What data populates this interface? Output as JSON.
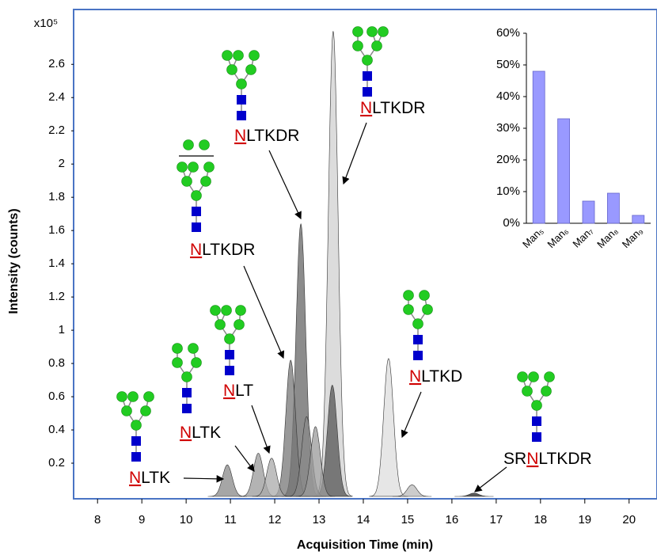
{
  "chart_data": [
    {
      "type": "chromatogram",
      "xlabel": "Acquisition Time (min)",
      "ylabel": "Intensity (counts)",
      "y_multiplier": "x10⁵",
      "x": [
        10.93,
        11.63,
        11.93,
        12.36,
        12.59,
        12.72,
        12.92,
        13.3,
        13.32,
        14.57,
        15.1,
        16.5
      ],
      "values": [
        0.19,
        0.26,
        0.23,
        0.82,
        1.64,
        0.48,
        0.42,
        0.67,
        2.8,
        0.83,
        0.07,
        0.02
      ],
      "colors": [
        "#888888",
        "#999999",
        "#aaaaaa",
        "#777777",
        "#666666",
        "#8a8a8a",
        "#9a9a9a",
        "#555555",
        "#d0d0d0",
        "#dddddd",
        "#bbbbbb",
        "#222222"
      ],
      "xlim": [
        7.46,
        20.63
      ],
      "xticks": [
        8,
        9,
        10,
        11,
        12,
        13,
        14,
        15,
        16,
        17,
        18,
        19,
        20
      ],
      "ylim": [
        0,
        2.93
      ],
      "yticks": [
        0.2,
        0.4,
        0.6,
        0.8,
        1,
        1.2,
        1.4,
        1.6,
        1.8,
        2,
        2.2,
        2.4,
        2.6
      ],
      "annotations": [
        {
          "site": "N",
          "text": "LTK"
        },
        {
          "site": "N",
          "text": "LTK"
        },
        {
          "site": "N",
          "text": "LT"
        },
        {
          "site": "N",
          "text": "LTKDR"
        },
        {
          "site": "N",
          "text": "LTKDR"
        },
        {
          "site": "N",
          "text": "LTKDR"
        },
        {
          "site": "N",
          "text": "LTKD"
        },
        {
          "prefix": "SR",
          "site": "N",
          "text": "LTKDR"
        }
      ]
    },
    {
      "type": "bar",
      "categories": [
        "Man₅",
        "Man₆",
        "Man₇",
        "Man₈",
        "Man₉"
      ],
      "values": [
        48,
        33,
        7,
        9.5,
        2.5
      ],
      "color": "#9999ff",
      "ylim": [
        0,
        60
      ],
      "yticks": [
        {
          "value": 0,
          "label": "0%"
        },
        {
          "value": 10,
          "label": "10%"
        },
        {
          "value": 20,
          "label": "20%"
        },
        {
          "value": 30,
          "label": "30%"
        },
        {
          "value": 40,
          "label": "40%"
        },
        {
          "value": 50,
          "label": "50%"
        },
        {
          "value": 60,
          "label": "60%"
        }
      ]
    }
  ]
}
